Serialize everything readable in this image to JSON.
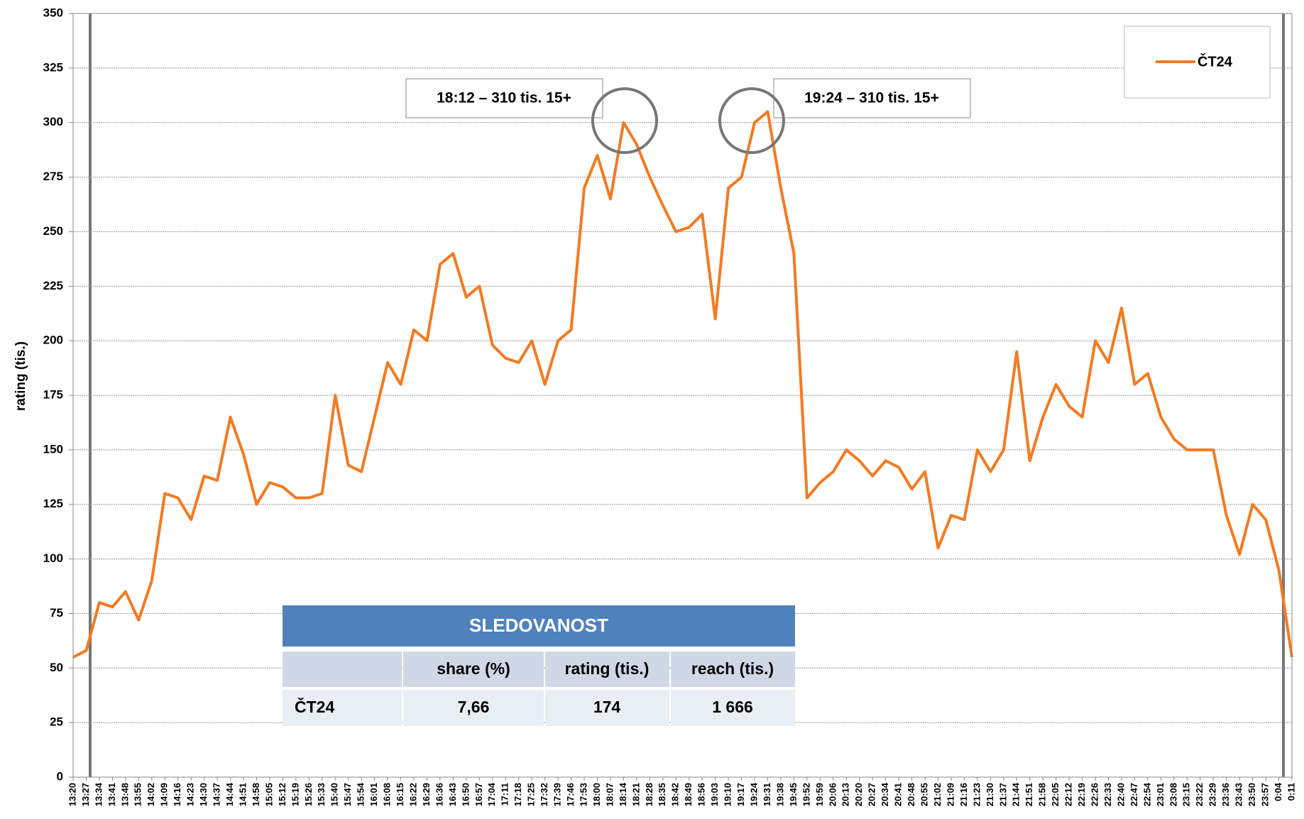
{
  "chart_data": {
    "type": "line",
    "y_label": "rating (tis.)",
    "categories": [
      "13:20",
      "13:27",
      "13:34",
      "13:41",
      "13:48",
      "13:55",
      "14:02",
      "14:09",
      "14:16",
      "14:23",
      "14:30",
      "14:37",
      "14:44",
      "14:51",
      "14:58",
      "15:05",
      "15:12",
      "15:19",
      "15:26",
      "15:33",
      "15:40",
      "15:47",
      "15:54",
      "16:01",
      "16:08",
      "16:15",
      "16:22",
      "16:29",
      "16:36",
      "16:43",
      "16:50",
      "16:57",
      "17:04",
      "17:11",
      "17:18",
      "17:25",
      "17:32",
      "17:39",
      "17:46",
      "17:53",
      "18:00",
      "18:07",
      "18:14",
      "18:21",
      "18:28",
      "18:35",
      "18:42",
      "18:49",
      "18:56",
      "19:03",
      "19:10",
      "19:17",
      "19:24",
      "19:31",
      "19:38",
      "19:45",
      "19:52",
      "19:59",
      "20:06",
      "20:13",
      "20:20",
      "20:27",
      "20:34",
      "20:41",
      "20:48",
      "20:55",
      "21:02",
      "21:09",
      "21:16",
      "21:23",
      "21:30",
      "21:37",
      "21:44",
      "21:51",
      "21:58",
      "22:05",
      "22:12",
      "22:19",
      "22:26",
      "22:33",
      "22:40",
      "22:47",
      "22:54",
      "23:01",
      "23:08",
      "23:15",
      "23:22",
      "23:29",
      "23:36",
      "23:43",
      "23:50",
      "23:57",
      "0:04",
      "0:11"
    ],
    "series": [
      {
        "name": "ČT24",
        "color": "#f47a20",
        "values": [
          55,
          58,
          80,
          78,
          85,
          72,
          90,
          130,
          128,
          118,
          138,
          136,
          165,
          148,
          125,
          135,
          133,
          128,
          128,
          130,
          175,
          143,
          140,
          165,
          190,
          180,
          205,
          200,
          235,
          240,
          220,
          225,
          198,
          192,
          190,
          200,
          180,
          200,
          205,
          270,
          285,
          265,
          300,
          290,
          275,
          262,
          250,
          252,
          258,
          210,
          270,
          275,
          300,
          305,
          270,
          240,
          128,
          135,
          140,
          150,
          145,
          138,
          145,
          142,
          132,
          140,
          105,
          120,
          118,
          150,
          140,
          150,
          195,
          145,
          165,
          180,
          170,
          165,
          200,
          190,
          215,
          180,
          185,
          165,
          155,
          150,
          150,
          150,
          120,
          102,
          125,
          118,
          95,
          55
        ]
      }
    ],
    "ylim": [
      0,
      350
    ],
    "yticks": [
      0,
      25,
      50,
      75,
      100,
      125,
      150,
      175,
      200,
      225,
      250,
      275,
      300,
      325,
      350
    ],
    "grid": true,
    "legend": "upper right",
    "annotations": [
      "18:12 – 310 tis. 15+",
      "19:24 – 310 tis. 15+"
    ]
  },
  "table": {
    "title": "SLEDOVANOST",
    "header": [
      "share (%)",
      "rating (tis.)",
      "reach (tis.)"
    ],
    "rows": [
      [
        "ČT24",
        "7,66",
        "174",
        "1 666"
      ]
    ]
  }
}
